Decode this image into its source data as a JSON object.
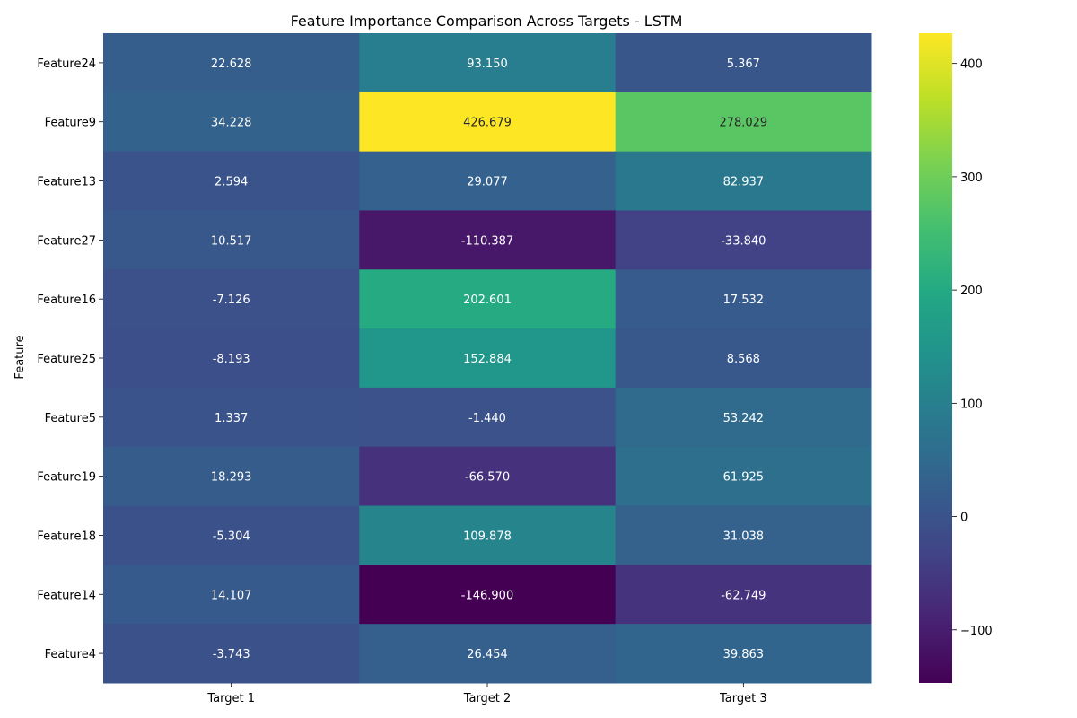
{
  "chart_data": {
    "type": "heatmap",
    "title": "Feature Importance Comparison Across Targets - LSTM",
    "xlabel": "",
    "ylabel": "Feature",
    "colormap": "viridis",
    "rows": [
      "Feature24",
      "Feature9",
      "Feature13",
      "Feature27",
      "Feature16",
      "Feature25",
      "Feature5",
      "Feature19",
      "Feature18",
      "Feature14",
      "Feature4"
    ],
    "columns": [
      "Target 1",
      "Target 2",
      "Target 3"
    ],
    "values": [
      [
        22.628,
        93.15,
        5.367
      ],
      [
        34.228,
        426.679,
        278.029
      ],
      [
        2.594,
        29.077,
        82.937
      ],
      [
        10.517,
        -110.387,
        -33.84
      ],
      [
        -7.126,
        202.601,
        17.532
      ],
      [
        -8.193,
        152.884,
        8.568
      ],
      [
        1.337,
        -1.44,
        53.242
      ],
      [
        18.293,
        -66.57,
        61.925
      ],
      [
        -5.304,
        109.878,
        31.038
      ],
      [
        14.107,
        -146.9,
        -62.749
      ],
      [
        -3.743,
        26.454,
        39.863
      ]
    ],
    "value_labels": [
      [
        "22.628",
        "93.150",
        "5.367"
      ],
      [
        "34.228",
        "426.679",
        "278.029"
      ],
      [
        "2.594",
        "29.077",
        "82.937"
      ],
      [
        "10.517",
        "-110.387",
        "-33.840"
      ],
      [
        "-7.126",
        "202.601",
        "17.532"
      ],
      [
        "-8.193",
        "152.884",
        "8.568"
      ],
      [
        "1.337",
        "-1.440",
        "53.242"
      ],
      [
        "18.293",
        "-66.570",
        "61.925"
      ],
      [
        "-5.304",
        "109.878",
        "31.038"
      ],
      [
        "14.107",
        "-146.900",
        "-62.749"
      ],
      [
        "-3.743",
        "26.454",
        "39.863"
      ]
    ],
    "colorbar": {
      "range": [
        -146.9,
        426.679
      ],
      "ticks": [
        -100,
        0,
        100,
        200,
        300,
        400
      ],
      "tick_labels": [
        "−100",
        "0",
        "100",
        "200",
        "300",
        "400"
      ]
    },
    "grid": false,
    "legend": "colorbar-right"
  }
}
